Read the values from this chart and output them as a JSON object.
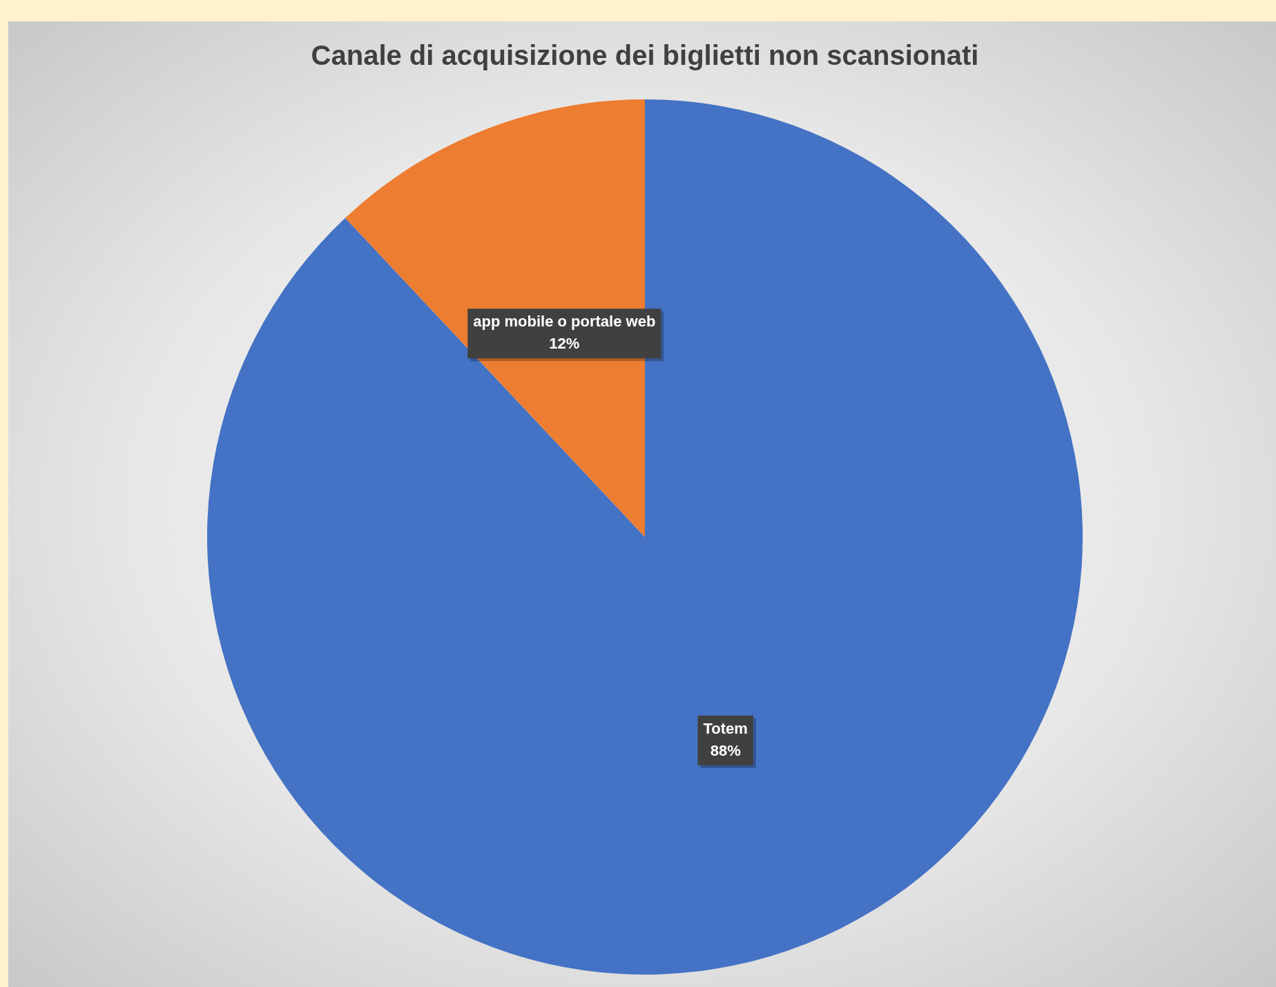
{
  "chart_data": {
    "type": "pie",
    "title": "Canale di acquisizione dei biglietti non scansionati",
    "categories": [
      "Totem",
      "app mobile o portale web"
    ],
    "values": [
      88,
      12
    ],
    "colors": [
      "#4472c4",
      "#ed7d31"
    ],
    "value_labels": [
      "88%",
      "12%"
    ]
  }
}
